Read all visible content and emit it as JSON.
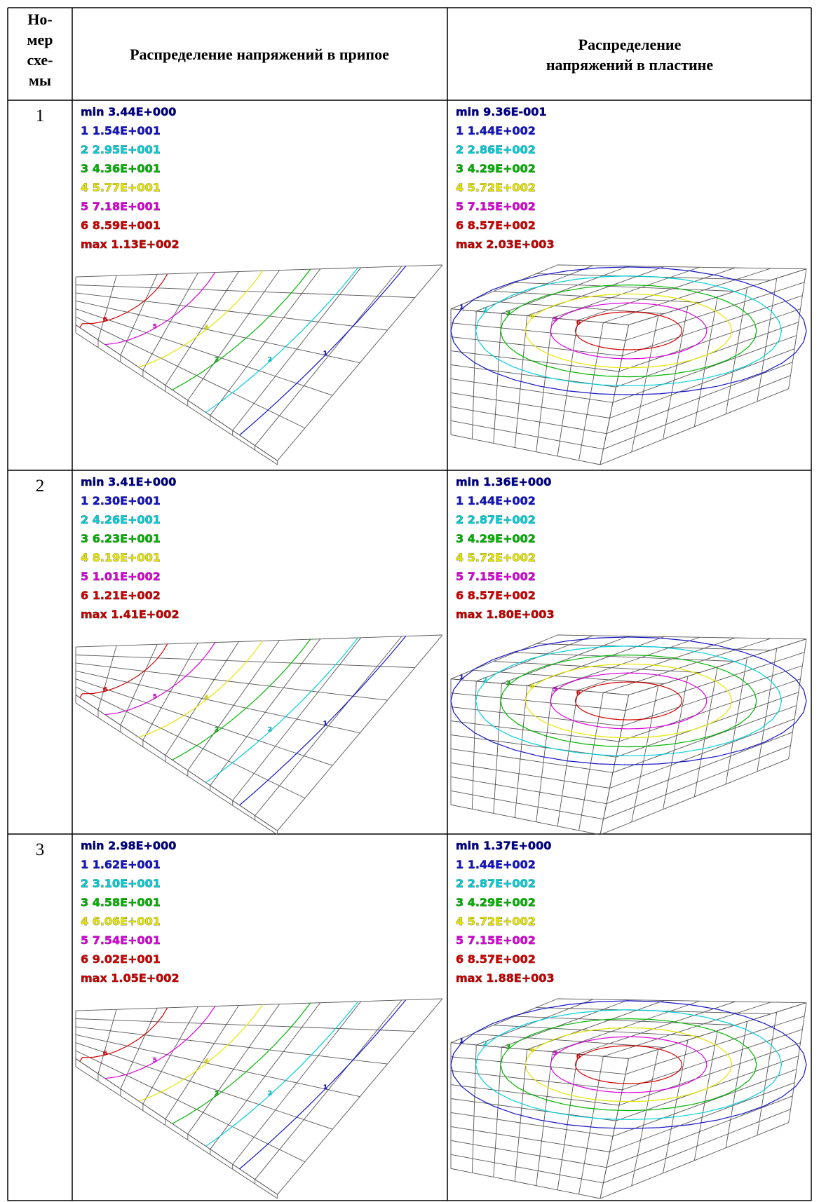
{
  "header": {
    "number": [
      "Но-",
      "мер",
      "схе-",
      "мы"
    ],
    "solder": "Распределение напряжений в припое",
    "plate": [
      "Распределение",
      "напряжений в пластине"
    ]
  },
  "rows": [
    {
      "number": "1",
      "solder": {
        "legend": [
          "min 3.44E+000",
          "1 1.54E+001",
          "2 2.95E+001",
          "3 4.36E+001",
          "4 5.77E+001",
          "5 7.18E+001",
          "6 8.59E+001",
          "max 1.13E+002"
        ],
        "contour_labels": [
          "1",
          "2",
          "3",
          "4",
          "5",
          "6"
        ]
      },
      "plate": {
        "legend": [
          "min 9.36E-001",
          "1 1.44E+002",
          "2 2.86E+002",
          "3 4.29E+002",
          "4 5.72E+002",
          "5 7.15E+002",
          "6 8.57E+002",
          "max 2.03E+003"
        ],
        "contour_labels": [
          "1",
          "2",
          "3",
          "4",
          "5",
          "6"
        ]
      }
    },
    {
      "number": "2",
      "solder": {
        "legend": [
          "min 3.41E+000",
          "1 2.30E+001",
          "2 4.26E+001",
          "3 6.23E+001",
          "4 8.19E+001",
          "5 1.01E+002",
          "6 1.21E+002",
          "max 1.41E+002"
        ],
        "contour_labels": [
          "1",
          "2",
          "3",
          "4",
          "5",
          "6"
        ]
      },
      "plate": {
        "legend": [
          "min 1.36E+000",
          "1 1.44E+002",
          "2 2.87E+002",
          "3 4.29E+002",
          "4 5.72E+002",
          "5 7.15E+002",
          "6 8.57E+002",
          "max 1.80E+003"
        ],
        "contour_labels": [
          "1",
          "2",
          "3",
          "4",
          "5",
          "6"
        ]
      }
    },
    {
      "number": "3",
      "solder": {
        "legend": [
          "min 2.98E+000",
          "1 1.62E+001",
          "2 3.10E+001",
          "3 4.58E+001",
          "4 6.06E+001",
          "5 7.54E+001",
          "6 9.02E+001",
          "max 1.05E+002"
        ],
        "contour_labels": [
          "1",
          "2",
          "3",
          "4",
          "5",
          "6"
        ]
      },
      "plate": {
        "legend": [
          "min 1.37E+000",
          "1 1.44E+002",
          "2 2.87E+002",
          "3 4.29E+002",
          "4 5.72E+002",
          "5 7.15E+002",
          "6 8.57E+002",
          "max 1.88E+003"
        ],
        "contour_labels": [
          "1",
          "2",
          "3",
          "4",
          "5",
          "6"
        ]
      }
    }
  ]
}
